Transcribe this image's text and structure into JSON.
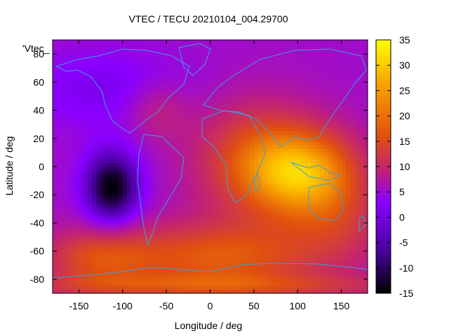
{
  "chart_data": {
    "type": "heatmap",
    "title": "VTEC / TECU 20210104_004.29700",
    "plot_label": "'Vtec_",
    "xlabel": "Longitude / deg",
    "ylabel": "Latitude / deg",
    "xlim": [
      -180,
      180
    ],
    "ylim": [
      -90,
      90
    ],
    "xticks": [
      -150,
      -100,
      -50,
      0,
      50,
      100,
      150
    ],
    "yticks": [
      -80,
      -60,
      -40,
      -20,
      0,
      20,
      40,
      60,
      80
    ],
    "colorbar": {
      "range": [
        -15,
        35
      ],
      "ticks": [
        -15,
        -10,
        -5,
        0,
        5,
        10,
        15,
        20,
        25,
        30,
        35
      ],
      "palette": [
        "#000000",
        "#4a00a0",
        "#8a00ff",
        "#c0207a",
        "#e0500f",
        "#f8a000",
        "#ffff00"
      ]
    },
    "grid": false,
    "features": [
      {
        "label": "minimum",
        "lon": -112,
        "lat": -15,
        "vtec": -13
      },
      {
        "label": "maximum",
        "lon": 115,
        "lat": -8,
        "vtec": 33
      }
    ]
  }
}
